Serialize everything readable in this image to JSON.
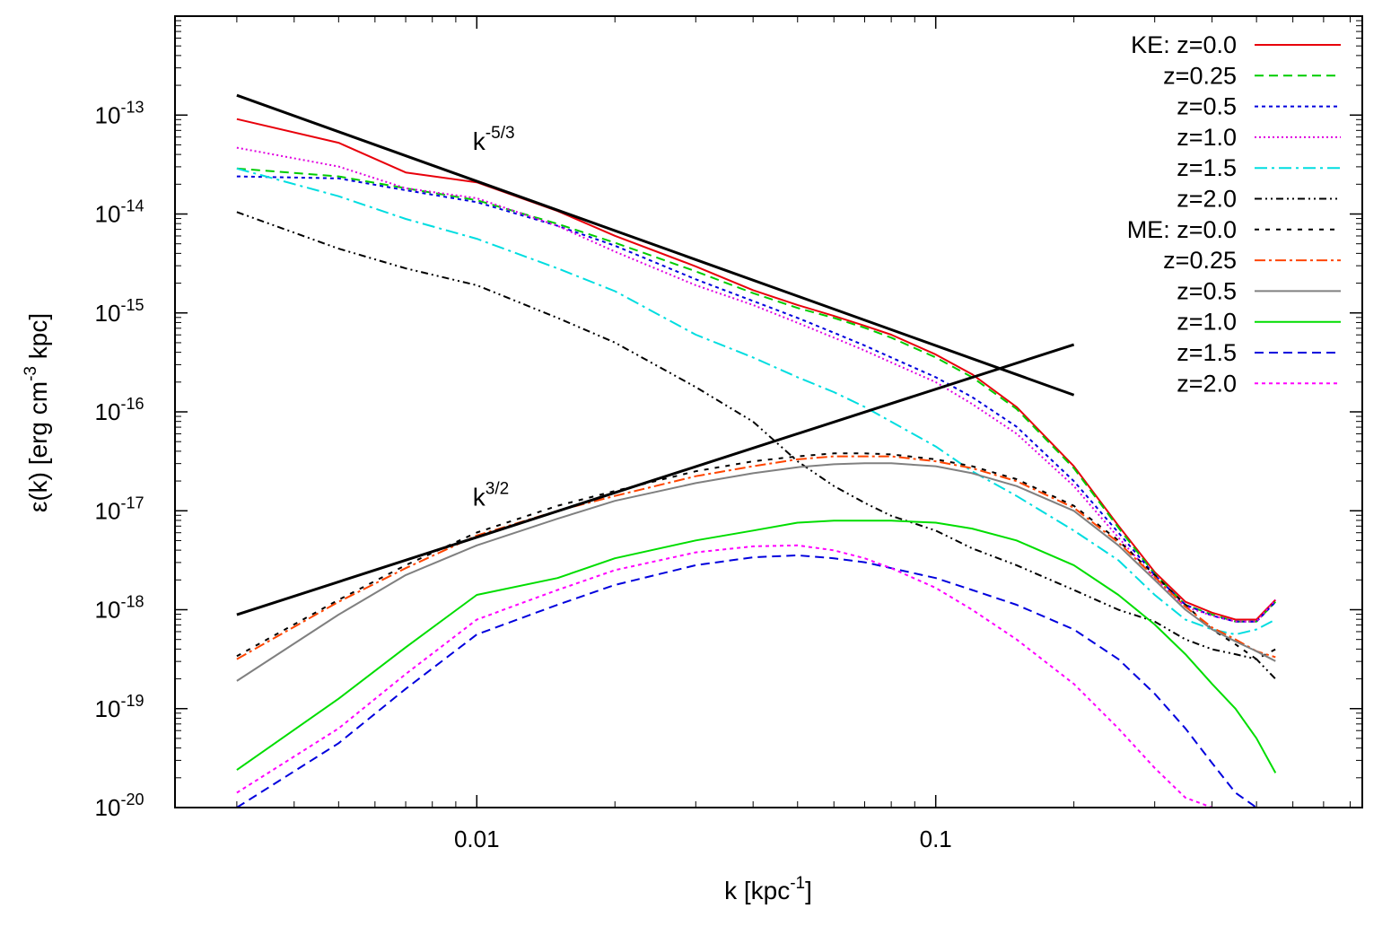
{
  "chart_data": {
    "type": "line",
    "title": "",
    "xlabel": "k [kpc",
    "xlabel_sup": "-1",
    "xlabel_end": "]",
    "ylabel": "ε(k) [erg cm",
    "ylabel_sup": "-3",
    "ylabel_end": " kpc]",
    "xscale": "log",
    "yscale": "log",
    "xlim": [
      0.0022,
      0.85
    ],
    "ylim": [
      1e-20,
      1e-12
    ],
    "x_ticks": [
      {
        "value": 0.01,
        "label": "0.01"
      },
      {
        "value": 0.1,
        "label": "0.1"
      }
    ],
    "y_ticks": [
      {
        "exp": -13,
        "base": "10",
        "sup": "-13"
      },
      {
        "exp": -14,
        "base": "10",
        "sup": "-14"
      },
      {
        "exp": -15,
        "base": "10",
        "sup": "-15"
      },
      {
        "exp": -16,
        "base": "10",
        "sup": "-16"
      },
      {
        "exp": -17,
        "base": "10",
        "sup": "-17"
      },
      {
        "exp": -18,
        "base": "10",
        "sup": "-18"
      },
      {
        "exp": -19,
        "base": "10",
        "sup": "-19"
      },
      {
        "exp": -20,
        "base": "10",
        "sup": "-20"
      }
    ],
    "legend_position": "top-right",
    "annotations": [
      {
        "base": "k",
        "sup": "-5/3",
        "x": 0.0098,
        "logy": -13.35
      },
      {
        "base": "k",
        "sup": "3/2",
        "x": 0.0098,
        "logy": -16.95
      }
    ],
    "reference_lines": [
      {
        "name": "k^-5/3",
        "x": [
          0.003,
          0.2
        ],
        "logy": [
          -12.8,
          -15.83
        ],
        "color": "#000000"
      },
      {
        "name": "k^3/2",
        "x": [
          0.003,
          0.2
        ],
        "logy": [
          -18.05,
          -15.32
        ],
        "color": "#000000"
      }
    ],
    "x": [
      0.003,
      0.005,
      0.007,
      0.01,
      0.015,
      0.02,
      0.03,
      0.04,
      0.05,
      0.06,
      0.07,
      0.08,
      0.1,
      0.12,
      0.15,
      0.2,
      0.25,
      0.3,
      0.35,
      0.4,
      0.45,
      0.5,
      0.55
    ],
    "series": [
      {
        "name": "KE: z=0.0",
        "legend": "KE: z=0.0",
        "color": "#e8000b",
        "dash": "",
        "logy": [
          -13.04,
          -13.28,
          -13.58,
          -13.68,
          -13.97,
          -14.22,
          -14.53,
          -14.77,
          -14.92,
          -15.03,
          -15.13,
          -15.22,
          -15.42,
          -15.62,
          -15.95,
          -16.55,
          -17.15,
          -17.62,
          -17.92,
          -18.03,
          -18.1,
          -18.1,
          -17.9
        ]
      },
      {
        "name": "KE: z=0.25",
        "legend": "z=0.25",
        "color": "#00cc00",
        "dash": "10,6",
        "logy": [
          -13.54,
          -13.62,
          -13.74,
          -13.86,
          -14.1,
          -14.29,
          -14.58,
          -14.8,
          -14.95,
          -15.05,
          -15.15,
          -15.25,
          -15.45,
          -15.65,
          -15.97,
          -16.57,
          -17.17,
          -17.64,
          -17.95,
          -18.05,
          -18.12,
          -18.12,
          -17.92
        ]
      },
      {
        "name": "KE: z=0.5",
        "legend": "z=0.5",
        "color": "#0000dd",
        "dash": "4,4",
        "logy": [
          -13.62,
          -13.64,
          -13.76,
          -13.88,
          -14.12,
          -14.32,
          -14.66,
          -14.88,
          -15.05,
          -15.2,
          -15.33,
          -15.45,
          -15.65,
          -15.85,
          -16.15,
          -16.7,
          -17.22,
          -17.65,
          -17.95,
          -18.06,
          -18.12,
          -18.12,
          -17.92
        ]
      },
      {
        "name": "KE: z=1.0",
        "legend": "z=1.0",
        "color": "#e000e0",
        "dash": "2,3",
        "logy": [
          -13.33,
          -13.52,
          -13.74,
          -13.84,
          -14.12,
          -14.38,
          -14.72,
          -14.92,
          -15.1,
          -15.25,
          -15.38,
          -15.5,
          -15.7,
          -15.92,
          -16.22,
          -16.75,
          -17.27,
          -17.68,
          -17.97,
          -18.06,
          -18.12,
          -18.12,
          -17.9
        ]
      },
      {
        "name": "KE: z=1.5",
        "legend": "z=1.5",
        "color": "#00dde0",
        "dash": "14,5,3,5",
        "logy": [
          -13.54,
          -13.82,
          -14.05,
          -14.25,
          -14.55,
          -14.78,
          -15.22,
          -15.45,
          -15.65,
          -15.8,
          -15.95,
          -16.1,
          -16.35,
          -16.6,
          -16.85,
          -17.2,
          -17.5,
          -17.85,
          -18.1,
          -18.2,
          -18.25,
          -18.2,
          -18.1
        ]
      },
      {
        "name": "KE: z=2.0",
        "legend": "z=2.0",
        "color": "#000000",
        "dash": "8,4,2,4,2,4",
        "logy": [
          -13.98,
          -14.35,
          -14.55,
          -14.72,
          -15.05,
          -15.3,
          -15.75,
          -16.1,
          -16.5,
          -16.75,
          -16.92,
          -17.05,
          -17.2,
          -17.38,
          -17.55,
          -17.8,
          -18.0,
          -18.12,
          -18.3,
          -18.4,
          -18.45,
          -18.5,
          -18.7
        ]
      },
      {
        "name": "ME: z=0.0",
        "legend": "ME: z=0.0",
        "color": "#000000",
        "dash": "5,7",
        "logy": [
          -18.47,
          -17.9,
          -17.55,
          -17.22,
          -16.95,
          -16.8,
          -16.6,
          -16.5,
          -16.45,
          -16.42,
          -16.42,
          -16.43,
          -16.48,
          -16.55,
          -16.68,
          -16.95,
          -17.3,
          -17.65,
          -17.95,
          -18.2,
          -18.35,
          -18.5,
          -18.4
        ]
      },
      {
        "name": "ME: z=0.25",
        "legend": "z=0.25",
        "color": "#ff4500",
        "dash": "12,4,3,4",
        "logy": [
          -18.5,
          -17.92,
          -17.58,
          -17.25,
          -17.0,
          -16.85,
          -16.65,
          -16.55,
          -16.48,
          -16.45,
          -16.45,
          -16.45,
          -16.5,
          -16.57,
          -16.7,
          -16.97,
          -17.32,
          -17.67,
          -17.97,
          -18.18,
          -18.3,
          -18.42,
          -18.48
        ]
      },
      {
        "name": "ME: z=0.5",
        "legend": "z=0.5",
        "color": "#808080",
        "dash": "",
        "logy": [
          -18.72,
          -18.05,
          -17.65,
          -17.35,
          -17.08,
          -16.9,
          -16.72,
          -16.62,
          -16.56,
          -16.53,
          -16.52,
          -16.52,
          -16.55,
          -16.62,
          -16.75,
          -17.0,
          -17.35,
          -17.7,
          -18.0,
          -18.2,
          -18.32,
          -18.42,
          -18.52
        ]
      },
      {
        "name": "ME: z=1.0",
        "legend": "z=1.0",
        "color": "#00dd00",
        "dash": "",
        "logy": [
          -19.62,
          -18.9,
          -18.38,
          -17.85,
          -17.68,
          -17.48,
          -17.3,
          -17.2,
          -17.12,
          -17.1,
          -17.1,
          -17.1,
          -17.12,
          -17.18,
          -17.3,
          -17.55,
          -17.85,
          -18.15,
          -18.45,
          -18.75,
          -19.0,
          -19.3,
          -19.65
        ]
      },
      {
        "name": "ME: z=1.5",
        "legend": "z=1.5",
        "color": "#0000dd",
        "dash": "10,6",
        "logy": [
          -20.0,
          -19.35,
          -18.8,
          -18.25,
          -17.95,
          -17.75,
          -17.55,
          -17.47,
          -17.45,
          -17.48,
          -17.52,
          -17.58,
          -17.68,
          -17.8,
          -17.95,
          -18.2,
          -18.5,
          -18.85,
          -19.2,
          -19.55,
          -19.85,
          -20.0,
          -20.0
        ]
      },
      {
        "name": "ME: z=2.0",
        "legend": "z=2.0",
        "color": "#ff00ff",
        "dash": "4,4",
        "logy": [
          -19.85,
          -19.2,
          -18.65,
          -18.1,
          -17.8,
          -17.6,
          -17.42,
          -17.36,
          -17.35,
          -17.4,
          -17.48,
          -17.58,
          -17.78,
          -18.0,
          -18.3,
          -18.75,
          -19.2,
          -19.6,
          -19.9,
          -20.0,
          -20.0,
          -20.0,
          -20.0
        ]
      }
    ]
  }
}
